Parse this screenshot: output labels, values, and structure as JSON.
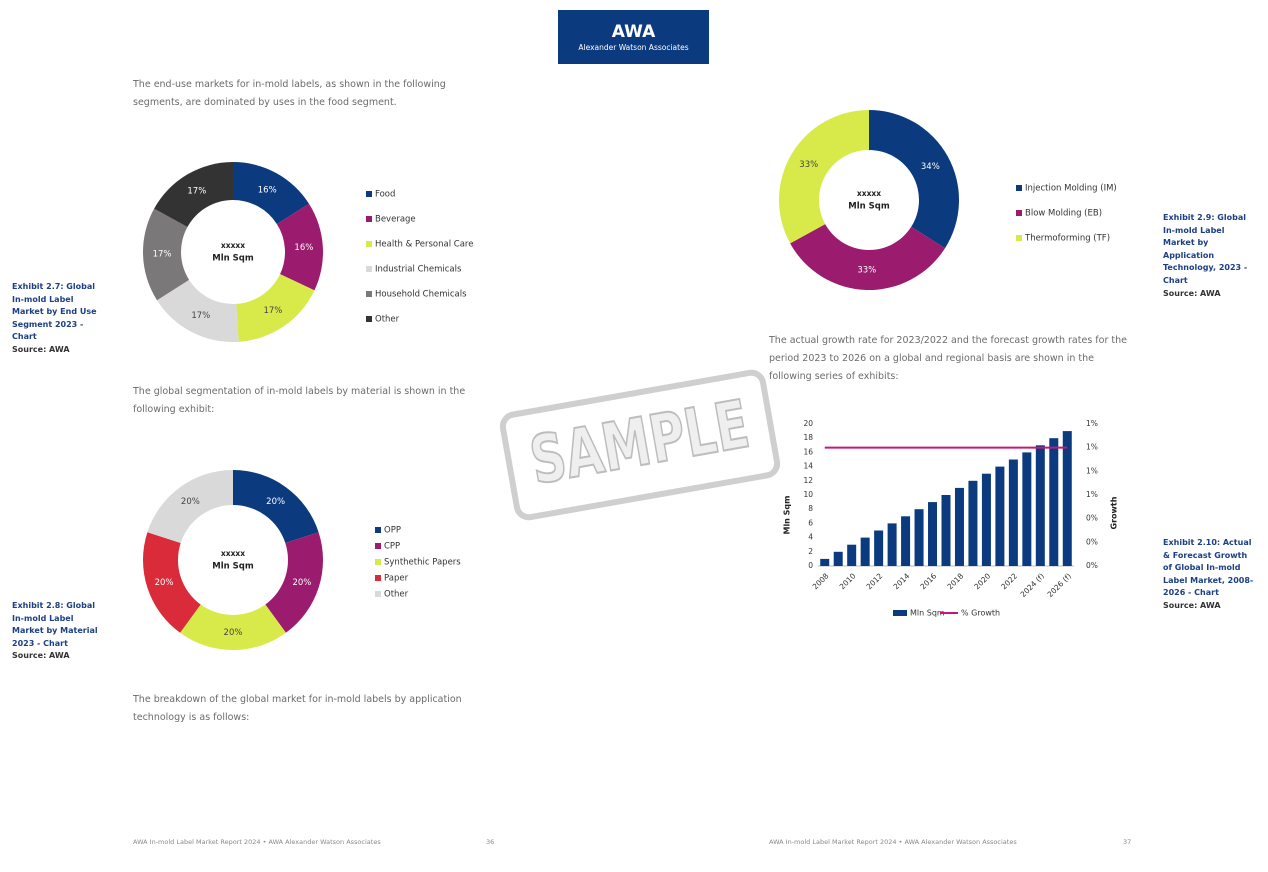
{
  "header": {
    "title": "AWA",
    "subtitle": "Alexander Watson Associates"
  },
  "paragraphs": [
    "The end-use markets for in-mold labels, as shown in the following segments, are dominated by uses in the food segment.",
    "The global segmentation of in-mold labels by material is shown in the following exhibit:",
    "The breakdown of the global market for in-mold labels by application technology is as follows:",
    "The actual growth rate for 2023/2022 and the forecast growth rates for the period 2023 to 2026 on a global and regional basis are shown in the following series of exhibits:"
  ],
  "exhibits": [
    {
      "caption": "Exhibit 2.7: Global In-mold Label Market by End Use Segment 2023 - Chart",
      "source": "Source: AWA"
    },
    {
      "caption": "Exhibit 2.8: Global In-mold Label Market by Material 2023 - Chart",
      "source": "Source: AWA"
    },
    {
      "caption": "Exhibit 2.9: Global In-mold Label Market by Application Technology, 2023 - Chart",
      "source": "Source: AWA"
    },
    {
      "caption": "Exhibit 2.10: Actual & Forecast Growth of Global In-mold Label Market, 2008-2026 - Chart",
      "source": "Source: AWA"
    }
  ],
  "footer": {
    "left_text": "AWA In-mold Label Market Report 2024 • AWA Alexander Watson Associates",
    "left_page": 36,
    "right_text": "AWA In-mold Label Market Report 2024 • AWA Alexander Watson Associates",
    "right_page": 37
  },
  "watermark": "SAMPLE",
  "chart_data": [
    {
      "type": "donut",
      "center_labels": [
        "xxxxx",
        "Mln Sqm"
      ],
      "categories": [
        "Food",
        "Beverage",
        "Health & Personal Care",
        "Industrial Chemicals",
        "Household Chemicals",
        "Other"
      ],
      "values": [
        16,
        16,
        17,
        17,
        17,
        17
      ],
      "value_labels": [
        "16%",
        "16%",
        "17%",
        "17%",
        "17%",
        "17%"
      ],
      "colors": [
        "#0b3a7e",
        "#9b1b6e",
        "#d7ea4a",
        "#d9d9d9",
        "#7a7878",
        "#333333"
      ]
    },
    {
      "type": "donut",
      "center_labels": [
        "xxxxx",
        "Mln Sqm"
      ],
      "categories": [
        "OPP",
        "CPP",
        "Synthethic Papers",
        "Paper",
        "Other"
      ],
      "values": [
        20,
        20,
        20,
        20,
        20
      ],
      "value_labels": [
        "20%",
        "20%",
        "20%",
        "20%",
        "20%"
      ],
      "colors": [
        "#0b3a7e",
        "#9b1b6e",
        "#d7ea4a",
        "#d92b3a",
        "#d9d9d9"
      ]
    },
    {
      "type": "donut",
      "center_labels": [
        "xxxxx",
        "Mln Sqm"
      ],
      "categories": [
        "Injection Molding (IM)",
        "Blow Molding (EB)",
        "Thermoforming (TF)"
      ],
      "values": [
        34,
        33,
        33
      ],
      "value_labels": [
        "34%",
        "33%",
        "33%"
      ],
      "colors": [
        "#0b3a7e",
        "#9b1b6e",
        "#d7ea4a"
      ]
    },
    {
      "type": "bar",
      "categories": [
        "2008",
        null,
        "2010",
        null,
        "2012",
        null,
        "2014",
        null,
        "2016",
        null,
        "2018",
        null,
        "2020",
        null,
        "2022",
        null,
        "2024 (f)",
        null,
        "2026 (f)"
      ],
      "series": [
        {
          "name": "Mln Sqm",
          "type": "bar",
          "color": "#0b3a7e",
          "values": [
            1,
            2,
            3,
            4,
            5,
            6,
            7,
            8,
            9,
            10,
            11,
            12,
            13,
            14,
            15,
            16,
            17,
            18,
            19
          ]
        },
        {
          "name": "% Growth",
          "type": "line",
          "axis": "y2",
          "color": "#c2187a",
          "values": [
            1,
            1,
            1,
            1,
            1,
            1,
            1,
            1,
            1,
            1,
            1,
            1,
            1,
            1,
            1,
            1,
            1,
            1,
            1
          ]
        }
      ],
      "ylabel": "Mln Sqm",
      "y2label": "Growth",
      "ylim": [
        0,
        20
      ],
      "yticks": [
        0,
        2,
        4,
        6,
        8,
        10,
        12,
        14,
        16,
        18,
        20
      ],
      "y2lim": [
        0,
        1.2
      ],
      "y2ticks": [
        {
          "value": 0,
          "label": "0%"
        },
        {
          "value": 0.2,
          "label": "0%"
        },
        {
          "value": 0.4,
          "label": "0%"
        },
        {
          "value": 0.6,
          "label": "1%"
        },
        {
          "value": 0.8,
          "label": "1%"
        },
        {
          "value": 1.0,
          "label": "1%"
        },
        {
          "value": 1.2,
          "label": "1%"
        }
      ]
    }
  ]
}
